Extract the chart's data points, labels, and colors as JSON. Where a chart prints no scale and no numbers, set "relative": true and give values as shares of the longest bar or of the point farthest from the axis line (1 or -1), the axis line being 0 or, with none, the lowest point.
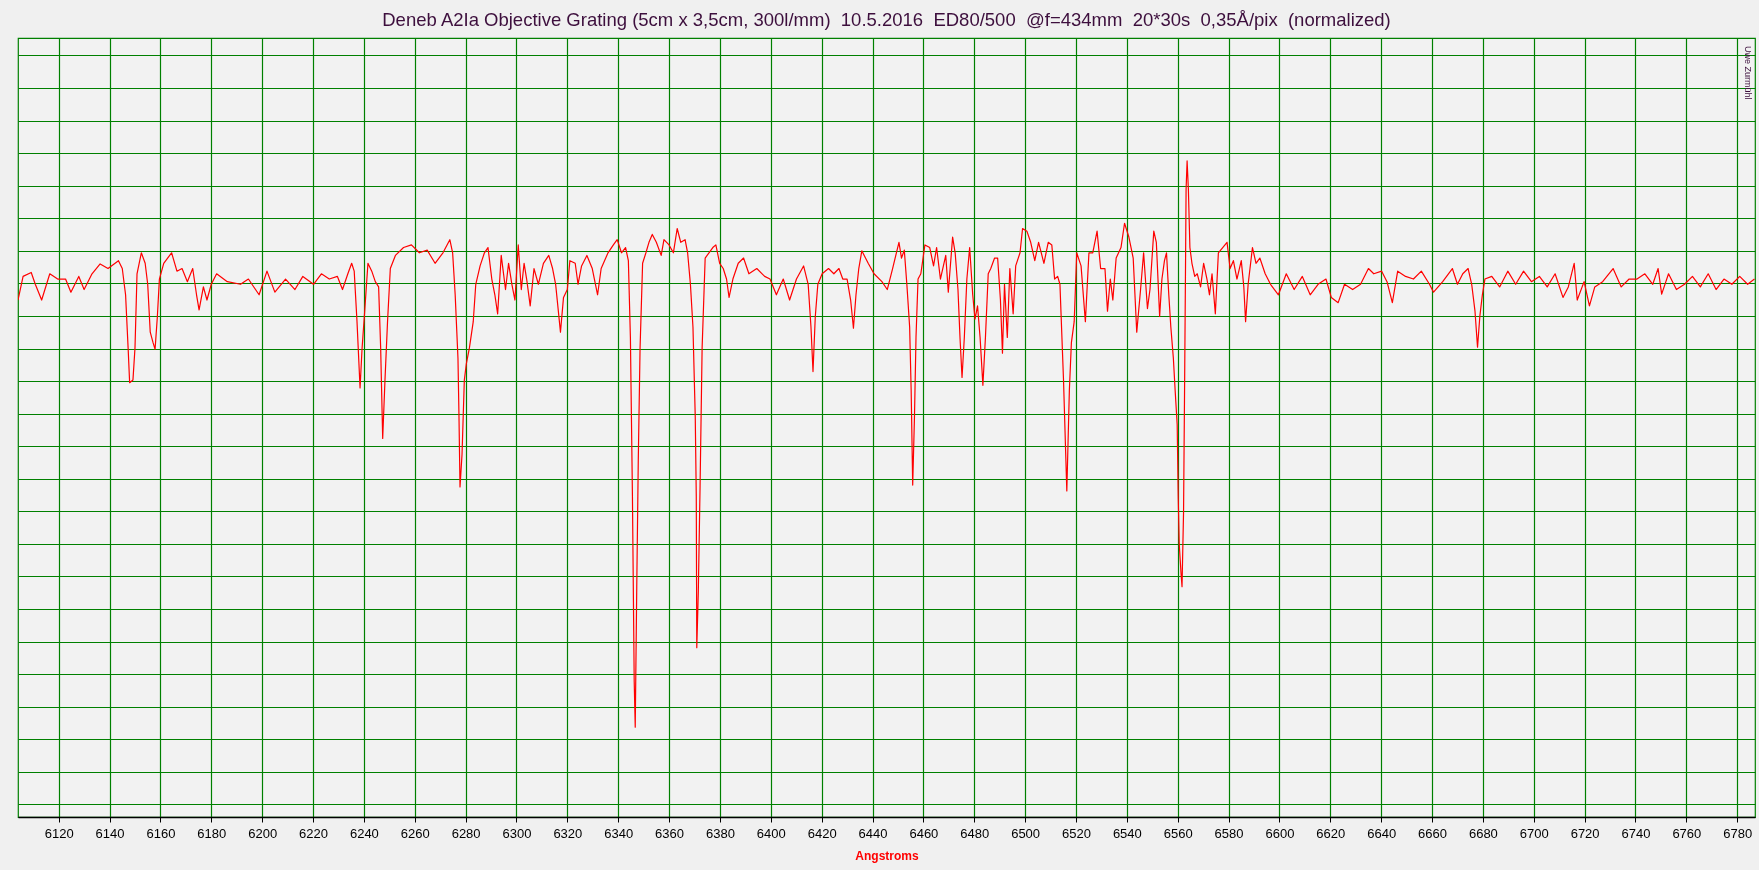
{
  "chart_data": {
    "type": "line",
    "title": "Deneb A2Ia Objective Grating (5cm x 3,5cm, 300l/mm)  10.5.2016  ED80/500  @f=434mm  20*30s  0,35Å/pix  (normalized)",
    "xlabel": "Angstroms",
    "annotations": [
      "Uwe Zurmühl"
    ],
    "x": [
      6104.0,
      6106.0,
      6109.2,
      6110.8,
      6113.3,
      6116.5,
      6119.6,
      6122.7,
      6124.8,
      6127.9,
      6130.0,
      6133.1,
      6136.3,
      6139.4,
      6143.5,
      6145.0,
      6146.3,
      6147.3,
      6147.9,
      6149.2,
      6150.0,
      6150.8,
      6152.5,
      6154.0,
      6155.0,
      6156.0,
      6157.1,
      6157.9,
      6158.8,
      6159.6,
      6161.3,
      6164.4,
      6166.5,
      6168.5,
      6170.6,
      6172.7,
      6174.2,
      6175.2,
      6176.9,
      6178.3,
      6180.0,
      6182.1,
      6186.3,
      6191.5,
      6194.6,
      6198.8,
      6201.9,
      6205.0,
      6209.2,
      6212.9,
      6216.0,
      6220.2,
      6223.3,
      6226.4,
      6229.6,
      6231.6,
      6233.7,
      6235.2,
      6236.2,
      6237.3,
      6238.5,
      6239.3,
      6240.4,
      6241.6,
      6243.1,
      6244.5,
      6245.8,
      6246.6,
      6247.4,
      6248.3,
      6249.3,
      6250.4,
      6252.4,
      6255.6,
      6258.7,
      6261.8,
      6264.9,
      6268.0,
      6271.1,
      6273.8,
      6274.9,
      6275.9,
      6277.0,
      6277.4,
      6277.8,
      6278.6,
      6279.5,
      6280.3,
      6281.5,
      6283.0,
      6284.0,
      6285.7,
      6287.4,
      6288.8,
      6290.3,
      6291.5,
      6292.6,
      6294.0,
      6295.7,
      6296.9,
      6298.2,
      6299.4,
      6300.7,
      6301.9,
      6303.0,
      6304.0,
      6305.4,
      6306.9,
      6308.6,
      6310.6,
      6312.7,
      6314.2,
      6315.4,
      6317.3,
      6318.5,
      6320.0,
      6321.0,
      6323.1,
      6324.2,
      6325.6,
      6327.7,
      6329.8,
      6331.9,
      6333.3,
      6336.0,
      6338.1,
      6339.6,
      6341.3,
      6342.9,
      6344.0,
      6344.8,
      6345.6,
      6346.3,
      6346.7,
      6347.3,
      6347.9,
      6348.6,
      6349.6,
      6350.9,
      6352.1,
      6353.4,
      6355.0,
      6356.9,
      6358.0,
      6360.0,
      6361.7,
      6363.2,
      6364.6,
      6366.3,
      6367.3,
      6368.4,
      6369.4,
      6370.3,
      6370.7,
      6370.9,
      6371.5,
      6372.2,
      6373.0,
      6374.2,
      6375.7,
      6377.2,
      6378.4,
      6379.9,
      6381.3,
      6382.6,
      6383.6,
      6385.1,
      6387.2,
      6389.3,
      6391.4,
      6394.5,
      6397.6,
      6399.7,
      6402.2,
      6404.9,
      6407.4,
      6410.1,
      6412.9,
      6414.7,
      6415.8,
      6416.6,
      6417.5,
      6418.5,
      6420.2,
      6422.7,
      6424.8,
      6426.8,
      6428.3,
      6430.0,
      6431.4,
      6432.5,
      6433.5,
      6434.6,
      6435.8,
      6438.3,
      6440.6,
      6443.7,
      6445.8,
      6447.9,
      6450.4,
      6451.4,
      6452.5,
      6453.5,
      6454.6,
      6455.2,
      6455.8,
      6456.5,
      6457.1,
      6457.9,
      6459.0,
      6460.6,
      6462.5,
      6464.0,
      6465.2,
      6466.7,
      6468.8,
      6469.8,
      6471.5,
      6472.5,
      6473.6,
      6474.4,
      6475.2,
      6476.1,
      6477.1,
      6478.2,
      6479.4,
      6480.3,
      6481.3,
      6482.3,
      6483.4,
      6484.4,
      6485.5,
      6486.5,
      6488.0,
      6489.2,
      6490.3,
      6491.1,
      6491.9,
      6493.0,
      6494.0,
      6495.3,
      6496.3,
      6498.0,
      6499.0,
      6500.7,
      6502.2,
      6503.8,
      6505.3,
      6507.4,
      6509.1,
      6510.5,
      6511.6,
      6512.8,
      6513.7,
      6515.1,
      6516.4,
      6517.4,
      6518.2,
      6519.3,
      6520.3,
      6522.0,
      6523.7,
      6525.1,
      6526.6,
      6528.3,
      6529.7,
      6531.4,
      6532.4,
      6533.5,
      6534.5,
      6535.8,
      6537.7,
      6539.1,
      6540.8,
      6542.5,
      6543.9,
      6545.4,
      6546.6,
      6548.1,
      6549.1,
      6550.6,
      6551.6,
      6552.9,
      6553.8,
      6554.8,
      6555.6,
      6556.5,
      6557.3,
      6558.3,
      6559.0,
      6559.8,
      6560.2,
      6560.6,
      6561.3,
      6561.7,
      6562.3,
      6562.7,
      6563.1,
      6563.3,
      6563.7,
      6564.2,
      6564.8,
      6565.6,
      6566.7,
      6567.7,
      6569.0,
      6570.2,
      6571.5,
      6572.5,
      6573.5,
      6574.8,
      6576.0,
      6577.7,
      6579.4,
      6580.6,
      6581.9,
      6583.3,
      6585.0,
      6586.0,
      6586.7,
      6587.7,
      6589.4,
      6590.8,
      6592.3,
      6594.4,
      6596.5,
      6599.6,
      6602.7,
      6605.8,
      6609.0,
      6612.1,
      6615.2,
      6618.3,
      6620.4,
      6623.1,
      6625.6,
      6628.8,
      6631.9,
      6635.0,
      6637.1,
      6640.2,
      6642.3,
      6644.4,
      6646.5,
      6649.6,
      6652.7,
      6655.8,
      6659.0,
      6660.6,
      6664.2,
      6668.0,
      6670.0,
      6672.1,
      6674.2,
      6675.6,
      6676.9,
      6677.9,
      6678.8,
      6679.8,
      6680.8,
      6683.5,
      6686.6,
      6689.8,
      6692.9,
      6696.0,
      6699.1,
      6702.2,
      6705.3,
      6708.4,
      6711.5,
      6713.6,
      6715.9,
      6717.1,
      6719.8,
      6721.9,
      6724.0,
      6727.1,
      6731.2,
      6734.4,
      6737.5,
      6740.6,
      6743.7,
      6746.8,
      6748.9,
      6750.3,
      6753.0,
      6756.1,
      6759.3,
      6762.4,
      6765.5,
      6768.6,
      6771.7,
      6774.8,
      6777.9,
      6781.0,
      6784.1,
      6786.8
    ],
    "series": [
      {
        "color": "#ff0000",
        "values": [
          0.788,
          0.824,
          0.83,
          0.812,
          0.788,
          0.828,
          0.82,
          0.82,
          0.8,
          0.824,
          0.804,
          0.828,
          0.843,
          0.836,
          0.848,
          0.836,
          0.796,
          0.715,
          0.662,
          0.666,
          0.715,
          0.828,
          0.86,
          0.844,
          0.812,
          0.739,
          0.723,
          0.713,
          0.763,
          0.82,
          0.844,
          0.86,
          0.832,
          0.836,
          0.816,
          0.836,
          0.796,
          0.773,
          0.808,
          0.788,
          0.812,
          0.828,
          0.816,
          0.812,
          0.82,
          0.796,
          0.832,
          0.8,
          0.82,
          0.804,
          0.824,
          0.812,
          0.828,
          0.82,
          0.824,
          0.804,
          0.828,
          0.844,
          0.832,
          0.755,
          0.654,
          0.715,
          0.775,
          0.844,
          0.832,
          0.816,
          0.808,
          0.715,
          0.577,
          0.666,
          0.755,
          0.836,
          0.856,
          0.868,
          0.872,
          0.86,
          0.864,
          0.844,
          0.86,
          0.88,
          0.86,
          0.796,
          0.699,
          0.61,
          0.503,
          0.553,
          0.666,
          0.691,
          0.715,
          0.755,
          0.812,
          0.84,
          0.86,
          0.868,
          0.82,
          0.796,
          0.767,
          0.856,
          0.804,
          0.844,
          0.812,
          0.788,
          0.872,
          0.804,
          0.844,
          0.82,
          0.779,
          0.836,
          0.812,
          0.844,
          0.856,
          0.836,
          0.812,
          0.739,
          0.792,
          0.804,
          0.848,
          0.844,
          0.812,
          0.84,
          0.856,
          0.836,
          0.796,
          0.836,
          0.86,
          0.872,
          0.88,
          0.86,
          0.868,
          0.848,
          0.731,
          0.489,
          0.206,
          0.137,
          0.351,
          0.545,
          0.715,
          0.844,
          0.86,
          0.876,
          0.888,
          0.876,
          0.856,
          0.88,
          0.872,
          0.86,
          0.897,
          0.876,
          0.88,
          0.86,
          0.812,
          0.747,
          0.61,
          0.489,
          0.258,
          0.343,
          0.505,
          0.715,
          0.852,
          0.86,
          0.868,
          0.872,
          0.844,
          0.836,
          0.82,
          0.792,
          0.82,
          0.844,
          0.852,
          0.828,
          0.836,
          0.824,
          0.82,
          0.796,
          0.82,
          0.788,
          0.82,
          0.84,
          0.812,
          0.747,
          0.679,
          0.763,
          0.812,
          0.828,
          0.836,
          0.828,
          0.836,
          0.82,
          0.82,
          0.788,
          0.745,
          0.796,
          0.836,
          0.863,
          0.844,
          0.828,
          0.816,
          0.804,
          0.836,
          0.876,
          0.852,
          0.864,
          0.812,
          0.747,
          0.65,
          0.506,
          0.61,
          0.731,
          0.82,
          0.828,
          0.872,
          0.868,
          0.84,
          0.868,
          0.82,
          0.856,
          0.8,
          0.884,
          0.86,
          0.804,
          0.731,
          0.67,
          0.731,
          0.82,
          0.868,
          0.796,
          0.759,
          0.779,
          0.731,
          0.658,
          0.731,
          0.828,
          0.836,
          0.852,
          0.852,
          0.788,
          0.707,
          0.812,
          0.731,
          0.836,
          0.767,
          0.84,
          0.86,
          0.897,
          0.893,
          0.876,
          0.848,
          0.876,
          0.844,
          0.876,
          0.872,
          0.82,
          0.824,
          0.812,
          0.666,
          0.497,
          0.65,
          0.723,
          0.755,
          0.86,
          0.84,
          0.755,
          0.86,
          0.86,
          0.893,
          0.836,
          0.836,
          0.771,
          0.82,
          0.788,
          0.852,
          0.868,
          0.905,
          0.884,
          0.852,
          0.739,
          0.804,
          0.86,
          0.775,
          0.804,
          0.893,
          0.876,
          0.763,
          0.82,
          0.848,
          0.86,
          0.796,
          0.747,
          0.699,
          0.65,
          0.598,
          0.489,
          0.416,
          0.372,
          0.351,
          0.464,
          0.65,
          0.852,
          0.957,
          1.0,
          0.957,
          0.868,
          0.844,
          0.824,
          0.828,
          0.808,
          0.844,
          0.82,
          0.796,
          0.828,
          0.767,
          0.86,
          0.868,
          0.876,
          0.836,
          0.848,
          0.82,
          0.848,
          0.808,
          0.755,
          0.812,
          0.868,
          0.844,
          0.852,
          0.828,
          0.812,
          0.796,
          0.828,
          0.804,
          0.824,
          0.796,
          0.812,
          0.82,
          0.792,
          0.784,
          0.812,
          0.804,
          0.812,
          0.836,
          0.828,
          0.832,
          0.816,
          0.784,
          0.832,
          0.824,
          0.82,
          0.832,
          0.812,
          0.8,
          0.816,
          0.836,
          0.812,
          0.828,
          0.836,
          0.812,
          0.771,
          0.716,
          0.763,
          0.796,
          0.82,
          0.824,
          0.808,
          0.832,
          0.812,
          0.832,
          0.816,
          0.824,
          0.808,
          0.828,
          0.792,
          0.808,
          0.844,
          0.788,
          0.816,
          0.779,
          0.808,
          0.816,
          0.836,
          0.808,
          0.82,
          0.82,
          0.828,
          0.812,
          0.836,
          0.797,
          0.828,
          0.804,
          0.812,
          0.824,
          0.808,
          0.828,
          0.804,
          0.82,
          0.812,
          0.824,
          0.812,
          0.82
        ]
      }
    ],
    "relative": true,
    "xlim": [
      6104,
      6787
    ],
    "xticks": [
      6120,
      6140,
      6160,
      6180,
      6200,
      6220,
      6240,
      6260,
      6280,
      6300,
      6320,
      6340,
      6360,
      6380,
      6400,
      6420,
      6440,
      6460,
      6480,
      6500,
      6520,
      6540,
      6560,
      6580,
      6600,
      6620,
      6640,
      6660,
      6680,
      6700,
      6720,
      6740,
      6760,
      6780
    ],
    "grid": true
  }
}
